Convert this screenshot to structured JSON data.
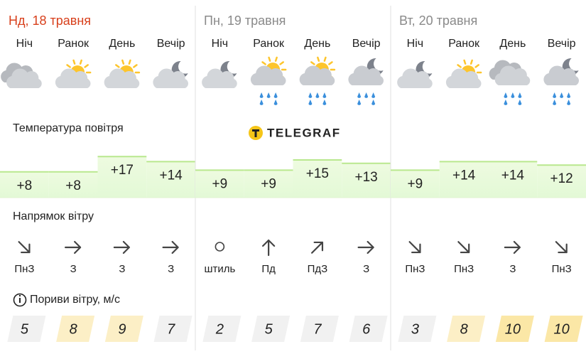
{
  "days": [
    {
      "title": "Нд, 18 травня",
      "periods": [
        "Ніч",
        "Ранок",
        "День",
        "Вечір"
      ],
      "temperatures": [
        "+8",
        "+8",
        "+17",
        "+14"
      ],
      "wind_directions": [
        "ПнЗ",
        "З",
        "З",
        "З"
      ],
      "wind_gusts": [
        5,
        8,
        9,
        7
      ]
    },
    {
      "title": "Пн, 19 травня",
      "periods": [
        "Ніч",
        "Ранок",
        "День",
        "Вечір"
      ],
      "temperatures": [
        "+9",
        "+9",
        "+15",
        "+13"
      ],
      "wind_directions": [
        "штиль",
        "Пд",
        "ПдЗ",
        "З"
      ],
      "wind_gusts": [
        2,
        5,
        7,
        6
      ]
    },
    {
      "title": "Вт, 20 травня",
      "periods": [
        "Ніч",
        "Ранок",
        "День",
        "Вечір"
      ],
      "temperatures": [
        "+9",
        "+14",
        "+14",
        "+12"
      ],
      "wind_directions": [
        "ПнЗ",
        "ПнЗ",
        "З",
        "ПнЗ"
      ],
      "wind_gusts": [
        3,
        8,
        10,
        10
      ]
    }
  ],
  "sections": {
    "temperature": "Температура повітря",
    "wind_direction": "Напрямок вітру",
    "wind_gusts": "Пориви вітру, м/с"
  },
  "logo": "TELEGRAF"
}
